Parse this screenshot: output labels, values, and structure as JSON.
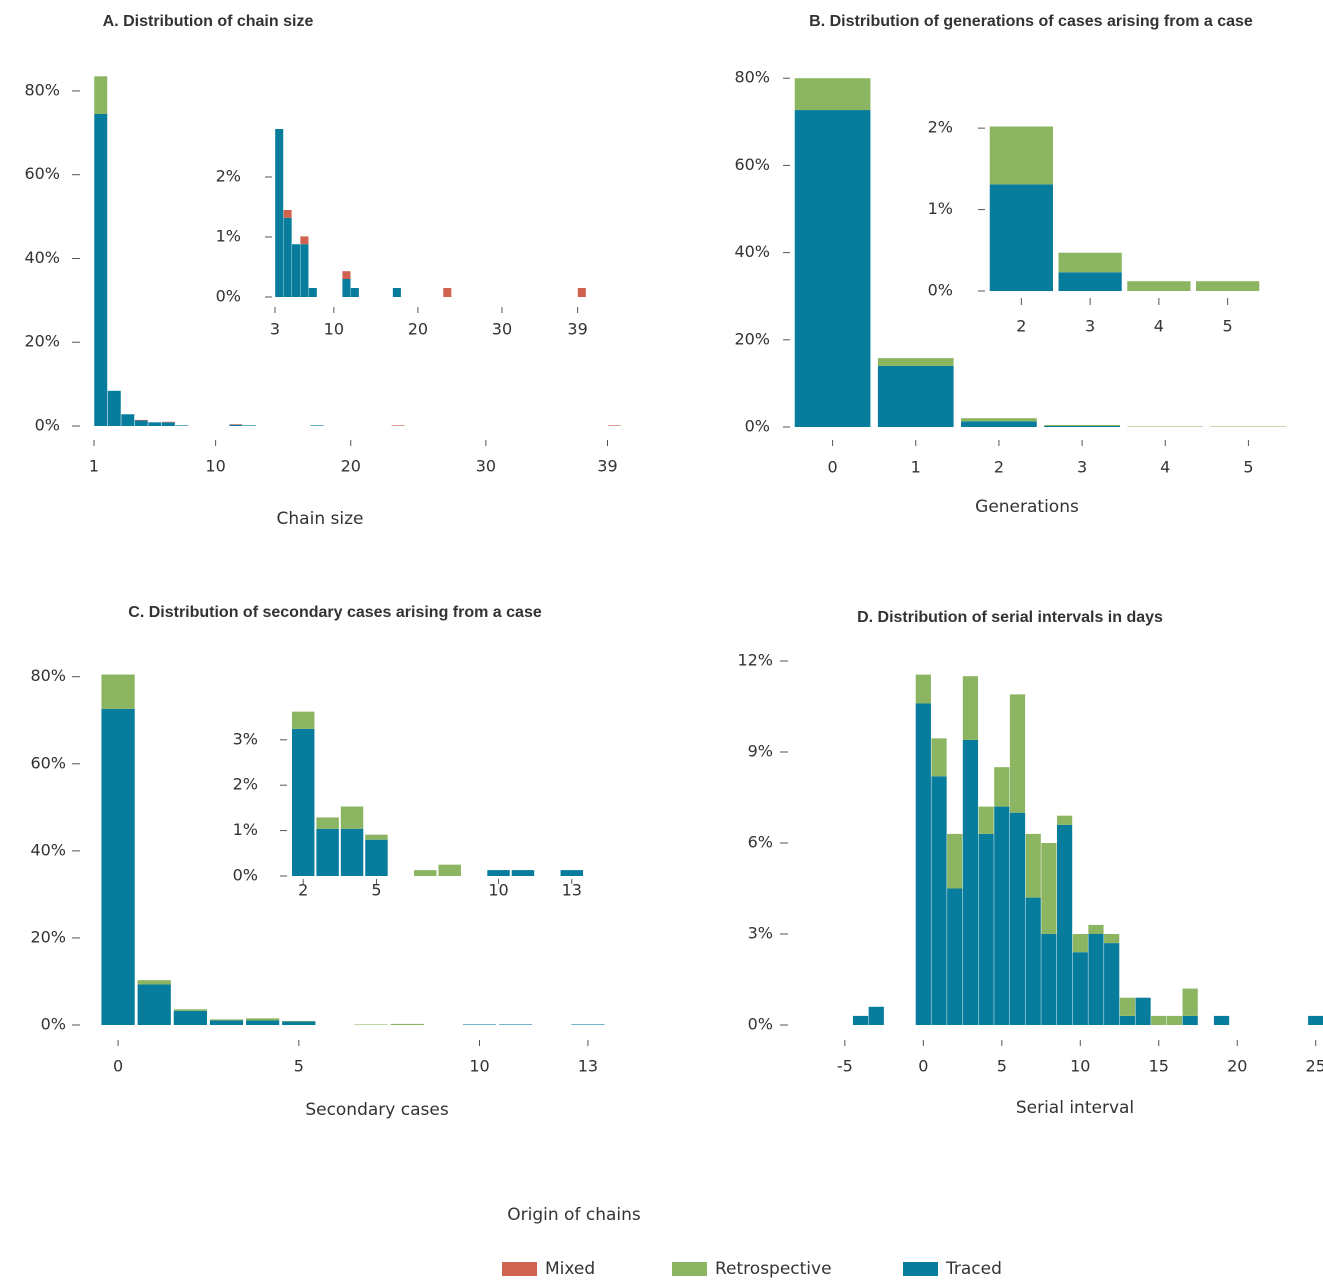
{
  "legend": {
    "title": "Origin of chains"
  },
  "chart_data": [
    {
      "type": "bar",
      "title": "A. Distribution of chain size",
      "x_label": "Chain size",
      "bar_align": "left",
      "x": [
        1,
        2,
        3,
        4,
        5,
        6,
        7,
        8,
        9,
        10,
        11,
        12,
        13,
        14,
        15,
        16,
        17,
        18,
        19,
        20,
        21,
        22,
        23,
        24,
        25,
        26,
        27,
        28,
        29,
        30,
        31,
        32,
        33,
        34,
        35,
        36,
        37,
        38,
        39
      ],
      "series": [
        {
          "name": "Traced",
          "color": "#087c9c",
          "values": [
            74.5,
            8.4,
            2.8,
            1.32,
            0.88,
            0.88,
            0.15,
            0,
            0,
            0,
            0.3,
            0.15,
            0,
            0,
            0,
            0,
            0.15,
            0,
            0,
            0,
            0,
            0,
            0,
            0,
            0,
            0,
            0,
            0,
            0,
            0,
            0,
            0,
            0,
            0,
            0,
            0,
            0,
            0,
            0
          ]
        },
        {
          "name": "Retrospective",
          "color": "#8cb562",
          "values": [
            9.0,
            0,
            0,
            0,
            0,
            0,
            0,
            0,
            0,
            0,
            0,
            0,
            0,
            0,
            0,
            0,
            0,
            0,
            0,
            0,
            0,
            0,
            0,
            0,
            0,
            0,
            0,
            0,
            0,
            0,
            0,
            0,
            0,
            0,
            0,
            0,
            0,
            0,
            0
          ]
        },
        {
          "name": "Mixed",
          "color": "#d0634f",
          "values": [
            0,
            0,
            0,
            0.13,
            0,
            0.13,
            0,
            0,
            0,
            0,
            0.13,
            0,
            0,
            0,
            0,
            0,
            0,
            0,
            0,
            0,
            0,
            0,
            0.15,
            0,
            0,
            0,
            0,
            0,
            0,
            0,
            0,
            0,
            0,
            0,
            0,
            0,
            0,
            0,
            0.15
          ]
        }
      ],
      "xlim": [
        1,
        40
      ],
      "xticks": [
        1,
        10,
        20,
        30,
        39
      ],
      "ylim": [
        0,
        85
      ],
      "yticks": [
        {
          "value": 0,
          "label": "0%"
        },
        {
          "value": 20,
          "label": "20%"
        },
        {
          "value": 40,
          "label": "40%"
        },
        {
          "value": 60,
          "label": "60%"
        },
        {
          "value": 80,
          "label": "80%"
        }
      ]
    },
    {
      "type": "bar",
      "bar_align": "left",
      "x": [
        3,
        4,
        5,
        6,
        7,
        8,
        9,
        10,
        11,
        12,
        13,
        14,
        15,
        16,
        17,
        18,
        19,
        20,
        21,
        22,
        23,
        24,
        25,
        26,
        27,
        28,
        29,
        30,
        31,
        32,
        33,
        34,
        35,
        36,
        37,
        38,
        39
      ],
      "series": [
        {
          "name": "Traced",
          "color": "#087c9c",
          "values": [
            2.8,
            1.32,
            0.88,
            0.88,
            0.15,
            0,
            0,
            0,
            0.3,
            0.15,
            0,
            0,
            0,
            0,
            0.15,
            0,
            0,
            0,
            0,
            0,
            0,
            0,
            0,
            0,
            0,
            0,
            0,
            0,
            0,
            0,
            0,
            0,
            0,
            0,
            0,
            0,
            0
          ]
        },
        {
          "name": "Mixed",
          "color": "#d0634f",
          "values": [
            0,
            0.13,
            0,
            0.13,
            0,
            0,
            0,
            0,
            0.13,
            0,
            0,
            0,
            0,
            0,
            0,
            0,
            0,
            0,
            0,
            0,
            0.15,
            0,
            0,
            0,
            0,
            0,
            0,
            0,
            0,
            0,
            0,
            0,
            0,
            0,
            0,
            0,
            0.15
          ]
        }
      ],
      "xlim": [
        3,
        40
      ],
      "xticks": [
        3,
        10,
        20,
        30,
        39
      ],
      "ylim": [
        0,
        2.8
      ],
      "yticks": [
        {
          "value": 0,
          "label": "0%"
        },
        {
          "value": 1,
          "label": "1%"
        },
        {
          "value": 2,
          "label": "2%"
        }
      ]
    },
    {
      "type": "bar",
      "title": "B. Distribution of generations of cases arising from a case",
      "x_label": "Generations",
      "bar_align": "center",
      "x": [
        0,
        1,
        2,
        3,
        4,
        5
      ],
      "series": [
        {
          "name": "Traced",
          "color": "#087c9c",
          "values": [
            72.7,
            14.0,
            1.31,
            0.23,
            0,
            0
          ]
        },
        {
          "name": "Retrospective",
          "color": "#8cb562",
          "values": [
            7.3,
            1.8,
            0.71,
            0.24,
            0.12,
            0.12
          ]
        }
      ],
      "xlim": [
        -0.5,
        5.5
      ],
      "xticks": [
        0,
        1,
        2,
        3,
        4,
        5
      ],
      "ylim": [
        0,
        82
      ],
      "yticks": [
        {
          "value": 0,
          "label": "0%"
        },
        {
          "value": 20,
          "label": "20%"
        },
        {
          "value": 40,
          "label": "40%"
        },
        {
          "value": 60,
          "label": "60%"
        },
        {
          "value": 80,
          "label": "80%"
        }
      ]
    },
    {
      "type": "bar",
      "bar_align": "center",
      "x": [
        2,
        3,
        4,
        5
      ],
      "series": [
        {
          "name": "Traced",
          "color": "#087c9c",
          "values": [
            1.31,
            0.23,
            0,
            0
          ]
        },
        {
          "name": "Retrospective",
          "color": "#8cb562",
          "values": [
            0.71,
            0.24,
            0.12,
            0.12
          ]
        }
      ],
      "xlim": [
        1.5,
        5.5
      ],
      "xticks": [
        2,
        3,
        4,
        5
      ],
      "ylim": [
        0,
        2.1
      ],
      "yticks": [
        {
          "value": 0,
          "label": "0%"
        },
        {
          "value": 1,
          "label": "1%"
        },
        {
          "value": 2,
          "label": "2%"
        }
      ]
    },
    {
      "type": "bar",
      "title": "C. Distribution of secondary cases arising from a case",
      "x_label": "Secondary cases",
      "bar_align": "center",
      "x": [
        0,
        1,
        2,
        3,
        4,
        5,
        6,
        7,
        8,
        9,
        10,
        11,
        12,
        13
      ],
      "series": [
        {
          "name": "Traced",
          "color": "#087c9c",
          "values": [
            72.6,
            9.3,
            3.24,
            1.04,
            1.04,
            0.8,
            0,
            0,
            0,
            0,
            0.13,
            0.13,
            0,
            0.13
          ]
        },
        {
          "name": "Retrospective",
          "color": "#8cb562",
          "values": [
            7.9,
            1.0,
            0.38,
            0.25,
            0.49,
            0.11,
            0,
            0.13,
            0.25,
            0,
            0,
            0,
            0,
            0
          ]
        }
      ],
      "xlim": [
        -0.5,
        13.5
      ],
      "xticks": [
        0,
        5,
        10,
        13
      ],
      "ylim": [
        0,
        82
      ],
      "yticks": [
        {
          "value": 0,
          "label": "0%"
        },
        {
          "value": 20,
          "label": "20%"
        },
        {
          "value": 40,
          "label": "40%"
        },
        {
          "value": 60,
          "label": "60%"
        },
        {
          "value": 80,
          "label": "80%"
        }
      ]
    },
    {
      "type": "bar",
      "bar_align": "center",
      "x": [
        2,
        3,
        4,
        5,
        6,
        7,
        8,
        9,
        10,
        11,
        12,
        13
      ],
      "series": [
        {
          "name": "Traced",
          "color": "#087c9c",
          "values": [
            3.24,
            1.04,
            1.04,
            0.8,
            0,
            0,
            0,
            0,
            0.13,
            0.13,
            0,
            0.13
          ]
        },
        {
          "name": "Retrospective",
          "color": "#8cb562",
          "values": [
            0.38,
            0.25,
            0.49,
            0.11,
            0,
            0.13,
            0.25,
            0,
            0,
            0,
            0,
            0
          ]
        }
      ],
      "xlim": [
        1.5,
        13.5
      ],
      "xticks": [
        2,
        5,
        10,
        13
      ],
      "ylim": [
        0,
        3.7
      ],
      "yticks": [
        {
          "value": 0,
          "label": "0%"
        },
        {
          "value": 1,
          "label": "1%"
        },
        {
          "value": 2,
          "label": "2%"
        },
        {
          "value": 3,
          "label": "3%"
        }
      ]
    },
    {
      "type": "bar",
      "title": "D. Distribution of serial intervals in days",
      "x_label": "Serial interval",
      "bar_align": "center",
      "x": [
        -4,
        -3,
        -2,
        -1,
        0,
        1,
        2,
        3,
        4,
        5,
        6,
        7,
        8,
        9,
        10,
        11,
        12,
        13,
        14,
        15,
        16,
        17,
        18,
        19,
        20,
        21,
        22,
        23,
        24,
        25
      ],
      "series": [
        {
          "name": "Traced",
          "color": "#087c9c",
          "values": [
            0.3,
            0.6,
            0,
            0,
            10.6,
            8.2,
            4.5,
            9.4,
            6.3,
            7.2,
            7.0,
            4.2,
            3.0,
            6.6,
            2.4,
            3.0,
            2.7,
            0.3,
            0.9,
            0,
            0,
            0.3,
            0,
            0.3,
            0,
            0,
            0,
            0,
            0,
            0.3
          ]
        },
        {
          "name": "Retrospective",
          "color": "#8cb562",
          "values": [
            0,
            0,
            0,
            0,
            0.95,
            1.25,
            1.8,
            2.1,
            0.9,
            1.3,
            3.9,
            2.1,
            3.0,
            0.3,
            0.6,
            0.3,
            0.3,
            0.6,
            0,
            0.3,
            0.3,
            0.9,
            0,
            0,
            0,
            0,
            0,
            0,
            0,
            0
          ]
        }
      ],
      "xlim": [
        -5.5,
        25.4
      ],
      "xticks": [
        -5,
        0,
        5,
        10,
        15,
        20,
        25
      ],
      "ylim": [
        0,
        12
      ],
      "yticks": [
        {
          "value": 0,
          "label": "0%"
        },
        {
          "value": 3,
          "label": "3%"
        },
        {
          "value": 6,
          "label": "6%"
        },
        {
          "value": 9,
          "label": "9%"
        },
        {
          "value": 12,
          "label": "12%"
        }
      ]
    }
  ]
}
